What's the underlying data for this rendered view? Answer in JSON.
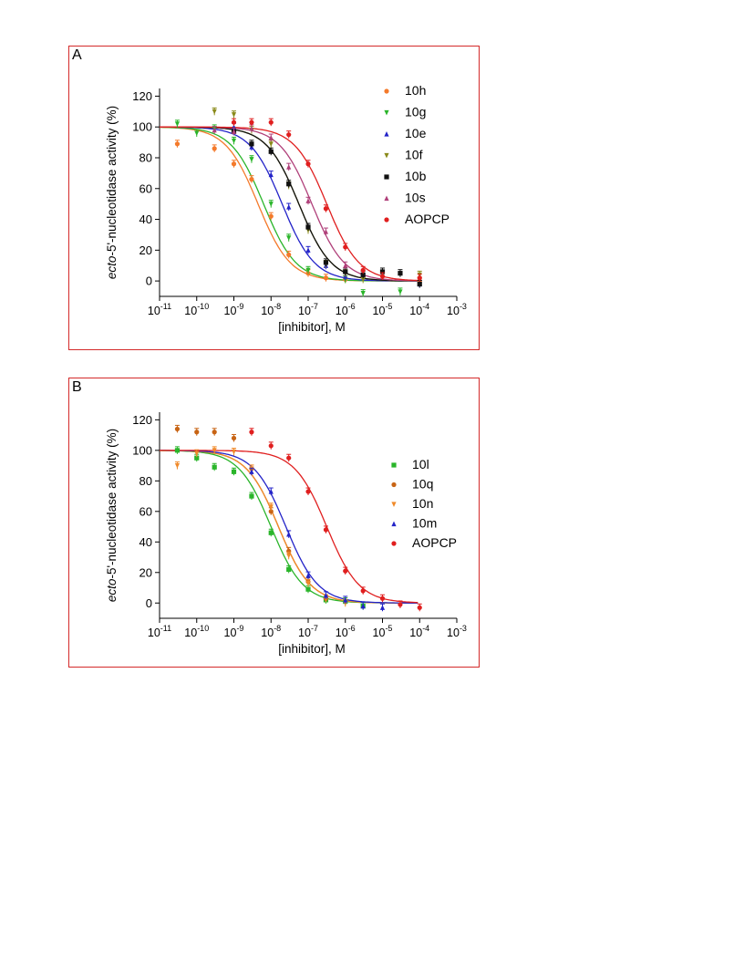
{
  "chart_data": [
    {
      "type": "scatter",
      "panel_label": "A",
      "xlabel": "[inhibitor], M",
      "ylabel_italic": "ecto",
      "ylabel_rest": "-5'-nucleotidase activity (%)",
      "x_scale": "log",
      "x_tick_exponents": [
        "-11",
        "-10",
        "-9",
        "-8",
        "-7",
        "-6",
        "-5",
        "-4",
        "-3"
      ],
      "x_tick_base": "10",
      "y_ticks": [
        "0",
        "20",
        "40",
        "60",
        "80",
        "100",
        "120"
      ],
      "xlim": [
        1e-11,
        0.001
      ],
      "ylim": [
        -10,
        125
      ],
      "legend_position": "right",
      "series": [
        {
          "name": "10h",
          "color": "#f47a2b",
          "marker": "circle",
          "log_ic50": -8.35,
          "hill": 1.0,
          "x": [
            3e-11,
            3e-10,
            1e-09,
            3e-09,
            1e-08,
            3e-08,
            1e-07,
            3e-07,
            1e-06,
            0.0001
          ],
          "y": [
            89,
            86,
            76,
            66,
            42,
            17,
            5,
            2,
            1,
            0
          ]
        },
        {
          "name": "10g",
          "color": "#2ab52a",
          "marker": "triangle-down",
          "log_ic50": -8.2,
          "hill": 1.0,
          "x": [
            3e-11,
            1e-10,
            3e-10,
            1e-09,
            3e-09,
            1e-08,
            3e-08,
            1e-07,
            1e-06,
            3e-06,
            3e-05
          ],
          "y": [
            102,
            96,
            99,
            91,
            79,
            50,
            28,
            7,
            1,
            -8,
            -7
          ]
        },
        {
          "name": "10e",
          "color": "#2323c8",
          "marker": "triangle-up",
          "log_ic50": -7.7,
          "hill": 1.0,
          "x": [
            1e-09,
            3e-09,
            1e-08,
            3e-08,
            1e-07,
            3e-07,
            1e-06,
            0.0001
          ],
          "y": [
            100,
            87,
            69,
            48,
            20,
            10,
            3,
            -2
          ]
        },
        {
          "name": "10f",
          "color": "#8a8a1a",
          "marker": "triangle-down",
          "log_ic50": -7.25,
          "hill": 1.0,
          "x": [
            3e-10,
            1e-09,
            3e-09,
            1e-08,
            3e-08,
            1e-07,
            3e-07,
            1e-06,
            3e-06,
            0.0001
          ],
          "y": [
            110,
            108,
            98,
            89,
            62,
            33,
            11,
            5,
            1,
            4
          ]
        },
        {
          "name": "10b",
          "color": "#111111",
          "marker": "square",
          "log_ic50": -7.25,
          "hill": 1.0,
          "x": [
            1e-09,
            3e-09,
            1e-08,
            3e-08,
            1e-07,
            3e-07,
            1e-06,
            3e-06,
            1e-05,
            3e-05,
            0.0001
          ],
          "y": [
            97,
            89,
            84,
            63,
            35,
            12,
            6,
            4,
            6,
            5,
            -2
          ]
        },
        {
          "name": "10s",
          "color": "#b0407a",
          "marker": "triangle-up",
          "log_ic50": -6.9,
          "hill": 1.0,
          "x": [
            3e-10,
            1e-09,
            3e-09,
            1e-08,
            3e-08,
            1e-07,
            3e-07,
            1e-06
          ],
          "y": [
            98,
            97,
            99,
            93,
            74,
            52,
            32,
            10
          ]
        },
        {
          "name": "AOPCP",
          "color": "#e01f1f",
          "marker": "circle",
          "log_ic50": -6.5,
          "hill": 1.0,
          "x": [
            1e-09,
            3e-09,
            1e-08,
            3e-08,
            1e-07,
            3e-07,
            1e-06,
            3e-06,
            1e-05,
            0.0001
          ],
          "y": [
            103,
            103,
            103,
            95,
            76,
            47,
            22,
            7,
            3,
            2
          ]
        }
      ]
    },
    {
      "type": "scatter",
      "panel_label": "B",
      "xlabel": "[inhibitor], M",
      "ylabel_italic": "ecto",
      "ylabel_rest": "-5'-nucleotidase activity (%)",
      "x_scale": "log",
      "x_tick_exponents": [
        "-11",
        "-10",
        "-9",
        "-8",
        "-7",
        "-6",
        "-5",
        "-4",
        "-3"
      ],
      "x_tick_base": "10",
      "y_ticks": [
        "0",
        "20",
        "40",
        "60",
        "80",
        "100",
        "120"
      ],
      "xlim": [
        1e-11,
        0.001
      ],
      "ylim": [
        -10,
        125
      ],
      "legend_position": "right",
      "series": [
        {
          "name": "10l",
          "color": "#2ab52a",
          "marker": "square",
          "log_ic50": -8.0,
          "hill": 1.0,
          "x": [
            3e-11,
            1e-10,
            3e-10,
            1e-09,
            3e-09,
            1e-08,
            3e-08,
            1e-07,
            3e-07,
            1e-06,
            3e-06
          ],
          "y": [
            100,
            95,
            89,
            86,
            70,
            46,
            22,
            9,
            2,
            1,
            -2
          ]
        },
        {
          "name": "10q",
          "color": "#c86414",
          "marker": "circle",
          "log_ic50": -7.8,
          "hill": 1.0,
          "x": [
            3e-11,
            1e-10,
            3e-10,
            1e-09,
            3e-09,
            1e-08,
            3e-08,
            1e-07,
            3e-07
          ],
          "y": [
            114,
            112,
            112,
            108,
            88,
            60,
            34,
            14,
            3
          ]
        },
        {
          "name": "10n",
          "color": "#f08a2a",
          "marker": "triangle-down",
          "log_ic50": -7.8,
          "hill": 1.0,
          "x": [
            3e-11,
            1e-10,
            3e-10,
            1e-09,
            3e-09,
            1e-08,
            3e-08,
            1e-07,
            3e-07,
            1e-06
          ],
          "y": [
            90,
            98,
            100,
            99,
            88,
            63,
            31,
            13,
            3,
            0
          ]
        },
        {
          "name": "10m",
          "color": "#2323c8",
          "marker": "triangle-up",
          "log_ic50": -7.6,
          "hill": 1.0,
          "x": [
            3e-09,
            1e-08,
            3e-08,
            1e-07,
            3e-07,
            1e-06,
            3e-06,
            1e-05
          ],
          "y": [
            86,
            73,
            45,
            18,
            5,
            2,
            -2,
            -3
          ]
        },
        {
          "name": "AOPCP",
          "color": "#e01f1f",
          "marker": "circle",
          "log_ic50": -6.5,
          "hill": 1.0,
          "x": [
            3e-09,
            1e-08,
            3e-08,
            1e-07,
            3e-07,
            1e-06,
            3e-06,
            1e-05,
            3e-05,
            0.0001
          ],
          "y": [
            112,
            103,
            95,
            73,
            48,
            21,
            8,
            3,
            -1,
            -3
          ]
        }
      ]
    }
  ]
}
